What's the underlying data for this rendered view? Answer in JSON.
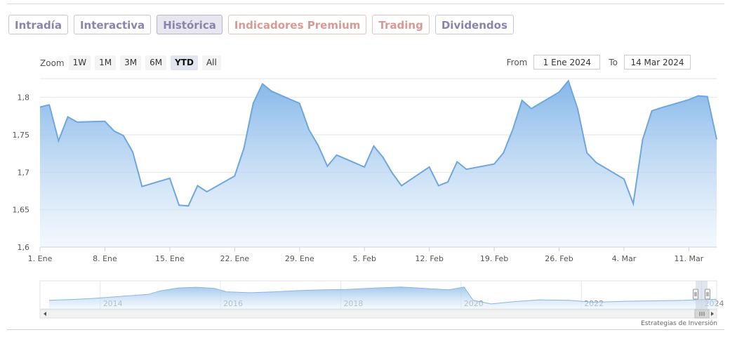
{
  "tabs": [
    {
      "label": "Intradía"
    },
    {
      "label": "Interactiva"
    },
    {
      "label": "Histórica"
    },
    {
      "label": "Indicadores Premium"
    },
    {
      "label": "Trading"
    },
    {
      "label": "Dividendos"
    }
  ],
  "zoom": {
    "label": "Zoom",
    "buttons": [
      "1W",
      "1M",
      "3M",
      "6M",
      "YTD",
      "All"
    ],
    "selected": "YTD"
  },
  "range": {
    "from_label": "From",
    "from_value": "1 Ene 2024",
    "to_label": "To",
    "to_value": "14 Mar 2024"
  },
  "credit": "Estrategias de Inversión",
  "colors": {
    "line": "#6fa6de",
    "fill_top": "#7fb3e8",
    "fill_bottom": "#eaf3fc",
    "accent_purple": "#8a84ad",
    "accent_red": "#d99a95"
  },
  "chart_data": {
    "type": "area",
    "title": "",
    "xlabel": "",
    "ylabel": "",
    "x_start": "2024-01-01",
    "x_end": "2024-03-14",
    "ylim": [
      1.6,
      1.825
    ],
    "y_ticks": [
      1.6,
      1.65,
      1.7,
      1.75,
      1.8
    ],
    "y_tick_labels": [
      "1,6",
      "1,65",
      "1,7",
      "1,75",
      "1,8"
    ],
    "x_ticks": [
      {
        "date": "2024-01-01",
        "label": "1. Ene"
      },
      {
        "date": "2024-01-08",
        "label": "8. Ene"
      },
      {
        "date": "2024-01-15",
        "label": "15. Ene"
      },
      {
        "date": "2024-01-22",
        "label": "22. Ene"
      },
      {
        "date": "2024-01-29",
        "label": "29. Ene"
      },
      {
        "date": "2024-02-05",
        "label": "5. Feb"
      },
      {
        "date": "2024-02-12",
        "label": "12. Feb"
      },
      {
        "date": "2024-02-19",
        "label": "19. Feb"
      },
      {
        "date": "2024-02-26",
        "label": "26. Feb"
      },
      {
        "date": "2024-03-04",
        "label": "4. Mar"
      },
      {
        "date": "2024-03-11",
        "label": "11. Mar"
      }
    ],
    "grid": true,
    "legend": "none",
    "series": [
      {
        "points": [
          [
            "2024-01-01",
            1.787
          ],
          [
            "2024-01-02",
            1.79
          ],
          [
            "2024-01-03",
            1.742
          ],
          [
            "2024-01-04",
            1.774
          ],
          [
            "2024-01-05",
            1.767
          ],
          [
            "2024-01-08",
            1.768
          ],
          [
            "2024-01-09",
            1.755
          ],
          [
            "2024-01-10",
            1.749
          ],
          [
            "2024-01-11",
            1.727
          ],
          [
            "2024-01-12",
            1.681
          ],
          [
            "2024-01-15",
            1.692
          ],
          [
            "2024-01-16",
            1.656
          ],
          [
            "2024-01-17",
            1.655
          ],
          [
            "2024-01-18",
            1.682
          ],
          [
            "2024-01-19",
            1.674
          ],
          [
            "2024-01-22",
            1.695
          ],
          [
            "2024-01-23",
            1.732
          ],
          [
            "2024-01-24",
            1.792
          ],
          [
            "2024-01-25",
            1.818
          ],
          [
            "2024-01-26",
            1.808
          ],
          [
            "2024-01-29",
            1.792
          ],
          [
            "2024-01-30",
            1.757
          ],
          [
            "2024-01-31",
            1.736
          ],
          [
            "2024-02-01",
            1.708
          ],
          [
            "2024-02-02",
            1.723
          ],
          [
            "2024-02-05",
            1.707
          ],
          [
            "2024-02-06",
            1.735
          ],
          [
            "2024-02-07",
            1.72
          ],
          [
            "2024-02-08",
            1.699
          ],
          [
            "2024-02-09",
            1.682
          ],
          [
            "2024-02-12",
            1.707
          ],
          [
            "2024-02-13",
            1.682
          ],
          [
            "2024-02-14",
            1.687
          ],
          [
            "2024-02-15",
            1.714
          ],
          [
            "2024-02-16",
            1.704
          ],
          [
            "2024-02-19",
            1.711
          ],
          [
            "2024-02-20",
            1.726
          ],
          [
            "2024-02-21",
            1.757
          ],
          [
            "2024-02-22",
            1.796
          ],
          [
            "2024-02-23",
            1.785
          ],
          [
            "2024-02-26",
            1.807
          ],
          [
            "2024-02-27",
            1.822
          ],
          [
            "2024-02-28",
            1.785
          ],
          [
            "2024-02-29",
            1.726
          ],
          [
            "2024-03-01",
            1.713
          ],
          [
            "2024-03-04",
            1.691
          ],
          [
            "2024-03-05",
            1.658
          ],
          [
            "2024-03-06",
            1.743
          ],
          [
            "2024-03-07",
            1.782
          ],
          [
            "2024-03-08",
            1.786
          ],
          [
            "2024-03-11",
            1.797
          ],
          [
            "2024-03-12",
            1.802
          ],
          [
            "2024-03-13",
            1.801
          ],
          [
            "2024-03-14",
            1.744
          ]
        ]
      }
    ],
    "navigator": {
      "x_labels": [
        "2014",
        "2016",
        "2018",
        "2020",
        "2022",
        "2024"
      ],
      "range": [
        2013.0,
        2024.25
      ],
      "points": [
        [
          2013.15,
          0.3
        ],
        [
          2013.6,
          0.34
        ],
        [
          2014.0,
          0.4
        ],
        [
          2014.4,
          0.48
        ],
        [
          2014.8,
          0.55
        ],
        [
          2015.0,
          0.7
        ],
        [
          2015.3,
          0.82
        ],
        [
          2015.6,
          0.85
        ],
        [
          2015.9,
          0.8
        ],
        [
          2016.1,
          0.66
        ],
        [
          2016.5,
          0.62
        ],
        [
          2016.9,
          0.66
        ],
        [
          2017.3,
          0.71
        ],
        [
          2017.7,
          0.74
        ],
        [
          2018.1,
          0.76
        ],
        [
          2018.6,
          0.82
        ],
        [
          2019.0,
          0.86
        ],
        [
          2019.4,
          0.8
        ],
        [
          2019.8,
          0.74
        ],
        [
          2020.05,
          0.86
        ],
        [
          2020.2,
          0.3
        ],
        [
          2020.5,
          0.15
        ],
        [
          2020.9,
          0.25
        ],
        [
          2021.3,
          0.32
        ],
        [
          2021.8,
          0.3
        ],
        [
          2022.2,
          0.22
        ],
        [
          2022.7,
          0.26
        ],
        [
          2023.2,
          0.28
        ],
        [
          2023.7,
          0.3
        ],
        [
          2024.0,
          0.33
        ],
        [
          2024.25,
          0.34
        ]
      ]
    }
  }
}
